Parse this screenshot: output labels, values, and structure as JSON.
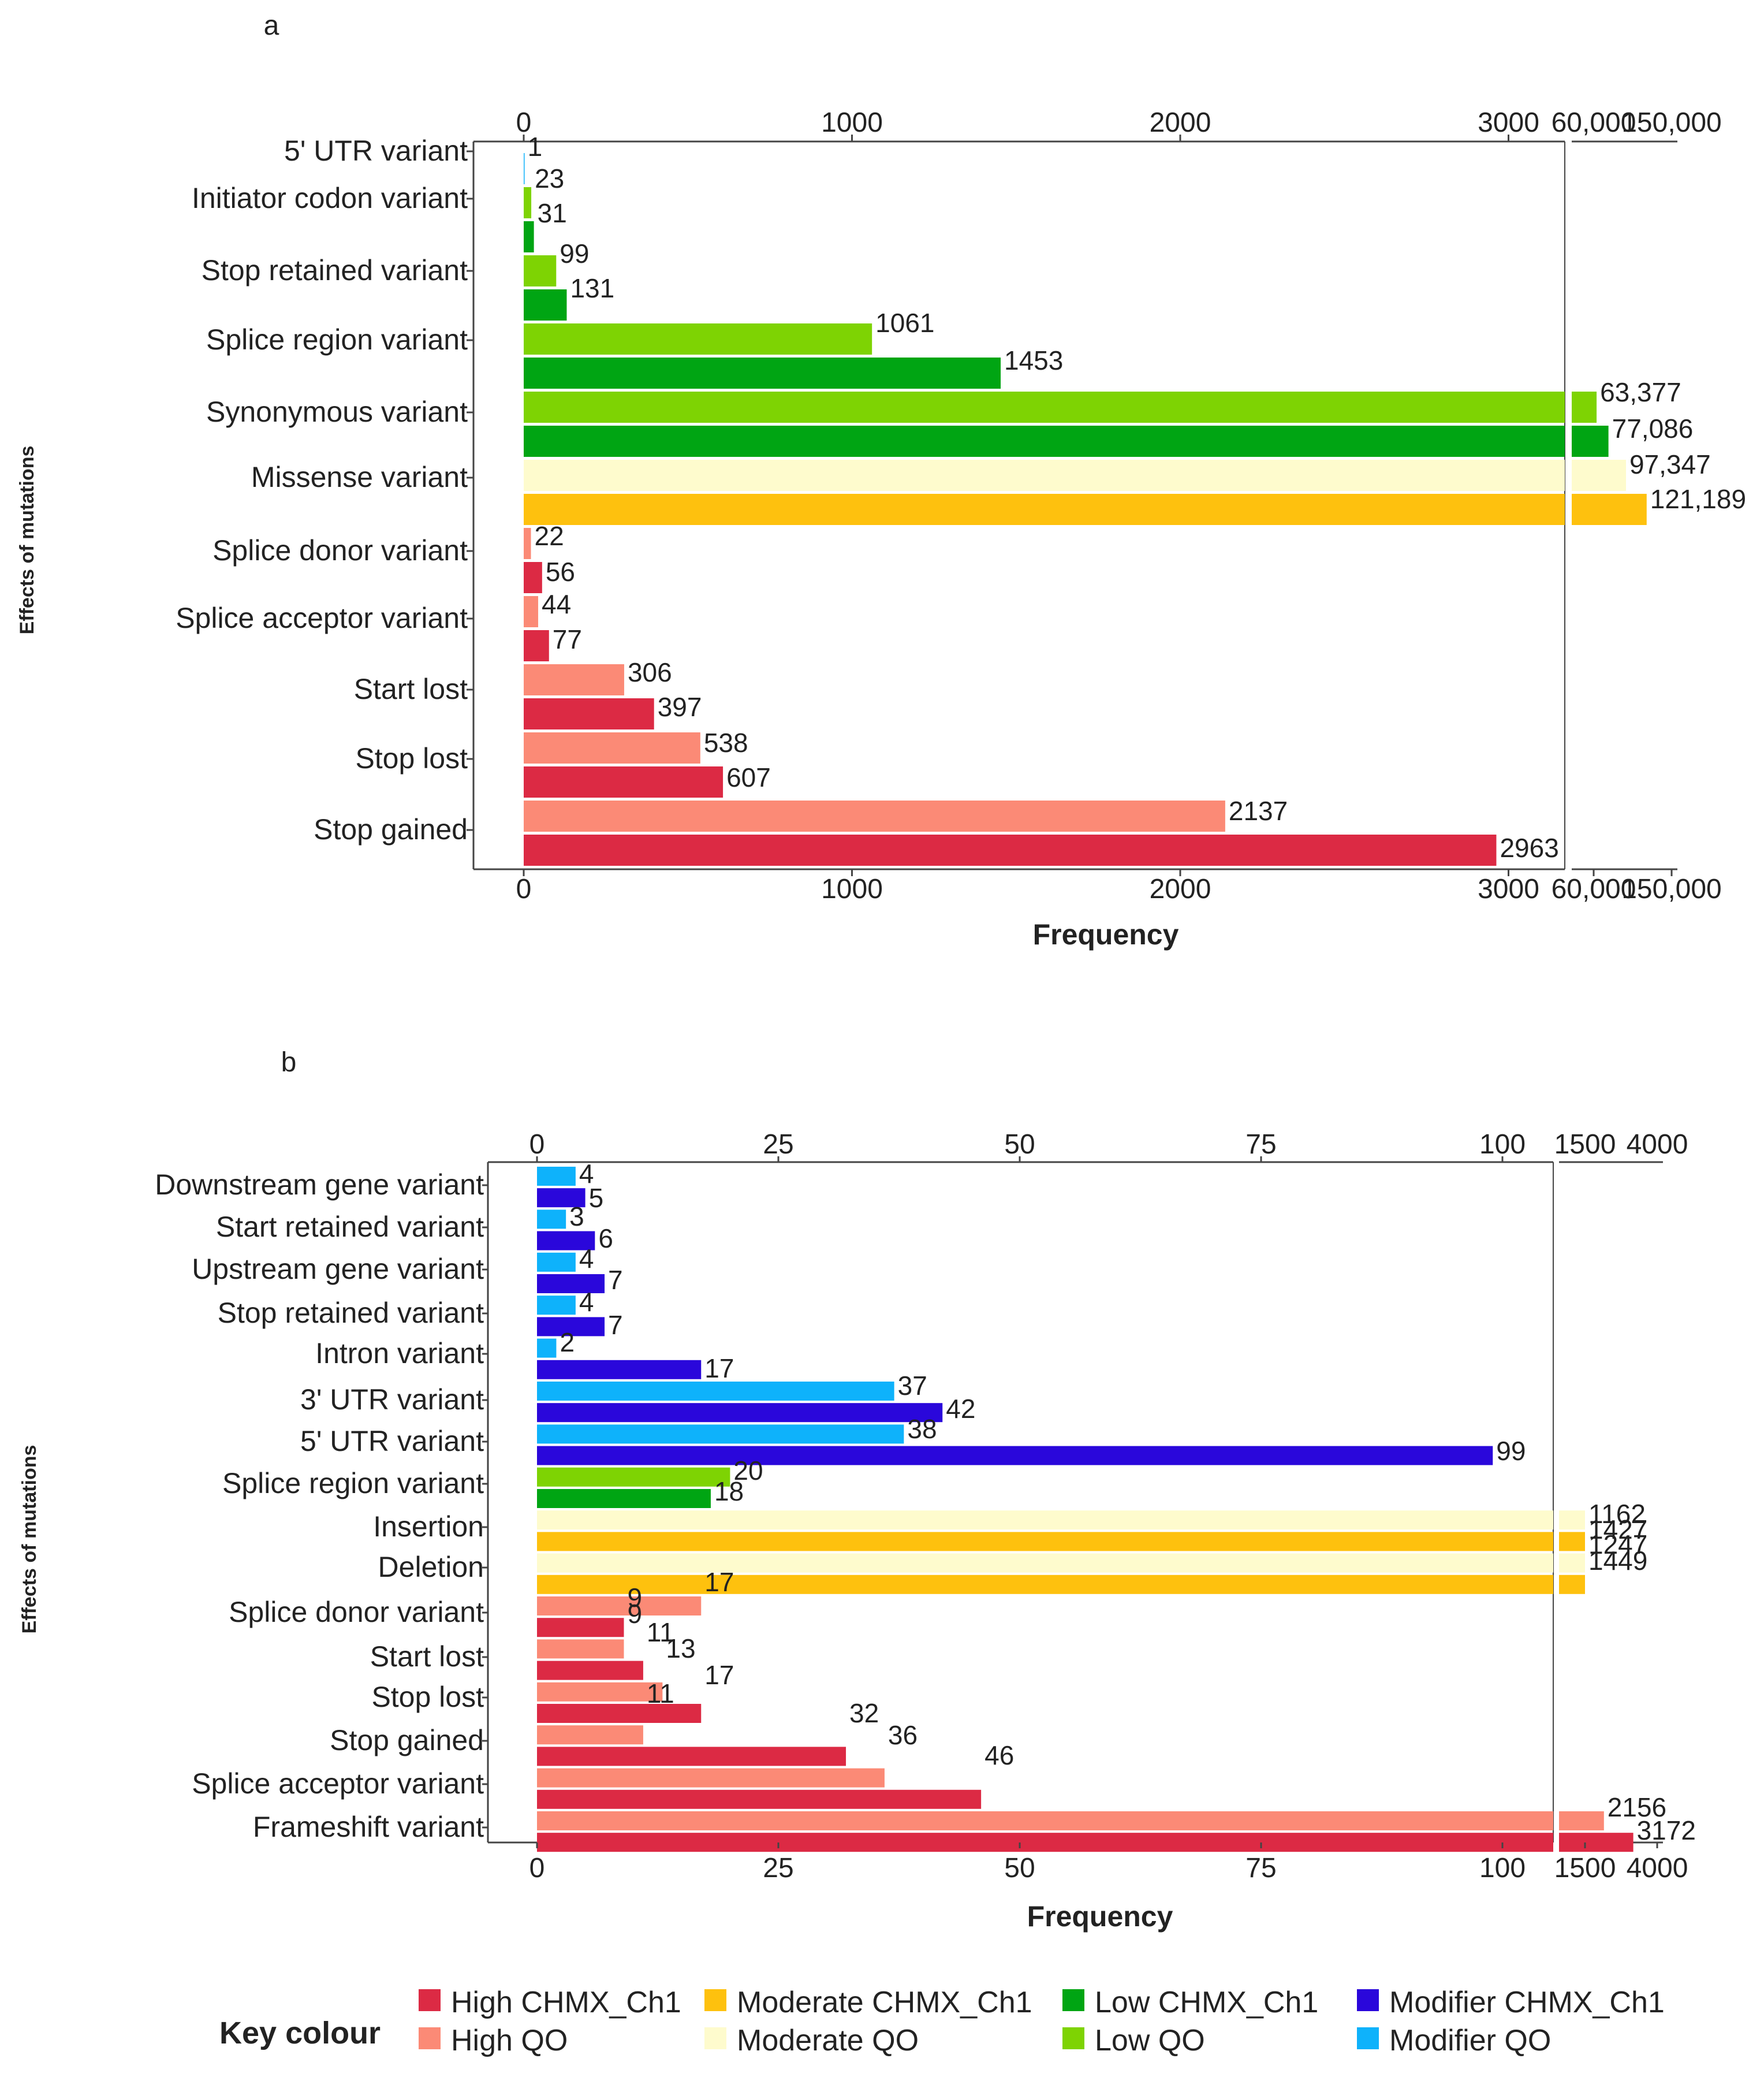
{
  "chart_data": [
    {
      "type": "bar",
      "panel": "a",
      "orientation": "horizontal",
      "title": "",
      "xlabel": "Frequency",
      "ylabel": "Effects of mutations",
      "axis_break": true,
      "x_ticks_linear": [
        0,
        1000,
        2000,
        3000
      ],
      "x_ticks_linear_labels": [
        "0",
        "1000",
        "2000",
        "3000"
      ],
      "x_ticks_broken": [
        60000,
        150000
      ],
      "x_ticks_broken_labels": [
        "60,000",
        "150,000"
      ],
      "categories": [
        "5' UTR variant",
        "Initiator codon variant",
        "Stop retained variant",
        "Splice region variant",
        "Synonymous variant",
        "Missense variant",
        "Splice donor variant",
        "Splice acceptor variant",
        "Start lost",
        "Stop lost",
        "Stop gained"
      ],
      "bars": [
        {
          "category": 0,
          "series": "Modifier QO",
          "value": 1,
          "label": "1"
        },
        {
          "category": 1,
          "series": "Low QO",
          "value": 23,
          "label": "23"
        },
        {
          "category": 1,
          "series": "Low CHMX_Ch1",
          "value": 31,
          "label": "31"
        },
        {
          "category": 2,
          "series": "Low QO",
          "value": 99,
          "label": "99"
        },
        {
          "category": 2,
          "series": "Low CHMX_Ch1",
          "value": 131,
          "label": "131"
        },
        {
          "category": 3,
          "series": "Low QO",
          "value": 1061,
          "label": "1061"
        },
        {
          "category": 3,
          "series": "Low CHMX_Ch1",
          "value": 1453,
          "label": "1453"
        },
        {
          "category": 4,
          "series": "Low QO",
          "value": 63377,
          "label": "63,377"
        },
        {
          "category": 4,
          "series": "Low CHMX_Ch1",
          "value": 77086,
          "label": "77,086"
        },
        {
          "category": 5,
          "series": "Moderate QO",
          "value": 97347,
          "label": "97,347"
        },
        {
          "category": 5,
          "series": "Moderate CHMX_Ch1",
          "value": 121189,
          "label": "121,189"
        },
        {
          "category": 6,
          "series": "High QO",
          "value": 22,
          "label": "22"
        },
        {
          "category": 6,
          "series": "High CHMX_Ch1",
          "value": 56,
          "label": "56"
        },
        {
          "category": 7,
          "series": "High QO",
          "value": 44,
          "label": "44"
        },
        {
          "category": 7,
          "series": "High CHMX_Ch1",
          "value": 77,
          "label": "77"
        },
        {
          "category": 8,
          "series": "High QO",
          "value": 306,
          "label": "306"
        },
        {
          "category": 8,
          "series": "High CHMX_Ch1",
          "value": 397,
          "label": "397"
        },
        {
          "category": 9,
          "series": "High QO",
          "value": 538,
          "label": "538"
        },
        {
          "category": 9,
          "series": "High CHMX_Ch1",
          "value": 607,
          "label": "607"
        },
        {
          "category": 10,
          "series": "High QO",
          "value": 2137,
          "label": "2137"
        },
        {
          "category": 10,
          "series": "High CHMX_Ch1",
          "value": 2963,
          "label": "2963"
        }
      ]
    },
    {
      "type": "bar",
      "panel": "b",
      "orientation": "horizontal",
      "title": "",
      "xlabel": "Frequency",
      "ylabel": "Effects of mutations",
      "axis_break": true,
      "x_ticks_linear": [
        0,
        25,
        50,
        75,
        100
      ],
      "x_ticks_linear_labels": [
        "0",
        "25",
        "50",
        "75",
        "100"
      ],
      "x_ticks_broken": [
        1500,
        4000
      ],
      "x_ticks_broken_labels": [
        "1500",
        "4000"
      ],
      "categories": [
        "Downstream gene variant",
        "Start retained variant",
        "Upstream gene variant",
        "Stop retained variant",
        "Intron variant",
        "3' UTR variant",
        "5' UTR variant",
        "Splice region variant",
        "Insertion",
        "Deletion",
        "Splice donor variant",
        "Start lost",
        "Stop lost",
        "Stop gained",
        "Splice acceptor variant",
        "Frameshift variant"
      ],
      "bars": [
        {
          "category": 0,
          "series": "Modifier QO",
          "value": 4,
          "label": "4"
        },
        {
          "category": 0,
          "series": "Modifier CHMX_Ch1",
          "value": 5,
          "label": "5"
        },
        {
          "category": 1,
          "series": "Modifier QO",
          "value": 3,
          "label": "3"
        },
        {
          "category": 1,
          "series": "Modifier CHMX_Ch1",
          "value": 6,
          "label": "6"
        },
        {
          "category": 2,
          "series": "Modifier QO",
          "value": 4,
          "label": "4"
        },
        {
          "category": 2,
          "series": "Modifier CHMX_Ch1",
          "value": 7,
          "label": "7"
        },
        {
          "category": 3,
          "series": "Modifier QO",
          "value": 4,
          "label": "4"
        },
        {
          "category": 3,
          "series": "Modifier CHMX_Ch1",
          "value": 7,
          "label": "7"
        },
        {
          "category": 4,
          "series": "Modifier QO",
          "value": 2,
          "label": "2"
        },
        {
          "category": 4,
          "series": "Modifier CHMX_Ch1",
          "value": 17,
          "label": "17"
        },
        {
          "category": 5,
          "series": "Modifier QO",
          "value": 37,
          "label": "37"
        },
        {
          "category": 5,
          "series": "Modifier CHMX_Ch1",
          "value": 42,
          "label": "42"
        },
        {
          "category": 6,
          "series": "Modifier QO",
          "value": 38,
          "label": "38"
        },
        {
          "category": 6,
          "series": "Modifier CHMX_Ch1",
          "value": 99,
          "label": "99"
        },
        {
          "category": 7,
          "series": "Low QO",
          "value": 20,
          "label": "20"
        },
        {
          "category": 7,
          "series": "Low CHMX_Ch1",
          "value": 18,
          "label": "18"
        },
        {
          "category": 8,
          "series": "Moderate QO",
          "value": 1162,
          "label": "1162"
        },
        {
          "category": 8,
          "series": "Moderate CHMX_Ch1",
          "value": 1427,
          "label": "1427"
        },
        {
          "category": 9,
          "series": "Moderate QO",
          "value": 1247,
          "label": "1247"
        },
        {
          "category": 9,
          "series": "Moderate CHMX_Ch1",
          "value": 1449,
          "label": "1449"
        },
        {
          "category": 10,
          "series": "High QO",
          "value": 17,
          "label": "17"
        },
        {
          "category": 10,
          "series": "High CHMX_Ch1",
          "value": 9,
          "label": "9"
        },
        {
          "category": 11,
          "series": "High QO",
          "value": 9,
          "label": "9"
        },
        {
          "category": 11,
          "series": "High CHMX_Ch1",
          "value": 11,
          "label": "11"
        },
        {
          "category": 12,
          "series": "High QO",
          "value": 13,
          "label": "13"
        },
        {
          "category": 12,
          "series": "High CHMX_Ch1",
          "value": 17,
          "label": "17"
        },
        {
          "category": 13,
          "series": "High QO",
          "value": 11,
          "label": "11"
        },
        {
          "category": 13,
          "series": "High CHMX_Ch1",
          "value": 32,
          "label": "32"
        },
        {
          "category": 14,
          "series": "High QO",
          "value": 36,
          "label": "36"
        },
        {
          "category": 14,
          "series": "High CHMX_Ch1",
          "value": 46,
          "label": "46"
        },
        {
          "category": 15,
          "series": "High QO",
          "value": 2156,
          "label": "2156"
        },
        {
          "category": 15,
          "series": "High CHMX_Ch1",
          "value": 3172,
          "label": "3172"
        }
      ]
    }
  ],
  "legend": {
    "title": "Key colour",
    "entries": [
      {
        "series": "High CHMX_Ch1",
        "label": "High CHMX_Ch1",
        "color": "#dc2a44"
      },
      {
        "series": "High QO",
        "label": "High QO",
        "color": "#fb8a76"
      },
      {
        "series": "Moderate CHMX_Ch1",
        "label": "Moderate CHMX_Ch1",
        "color": "#fec10e"
      },
      {
        "series": "Moderate QO",
        "label": "Moderate QO",
        "color": "#fefbcd"
      },
      {
        "series": "Low CHMX_Ch1",
        "label": "Low CHMX_Ch1",
        "color": "#00a513"
      },
      {
        "series": "Low QO",
        "label": "Low QO",
        "color": "#7ed303"
      },
      {
        "series": "Modifier CHMX_Ch1",
        "label": "Modifier CHMX_Ch1",
        "color": "#2a07db"
      },
      {
        "series": "Modifier QO",
        "label": "Modifier QO",
        "color": "#0eb2fb"
      }
    ]
  }
}
